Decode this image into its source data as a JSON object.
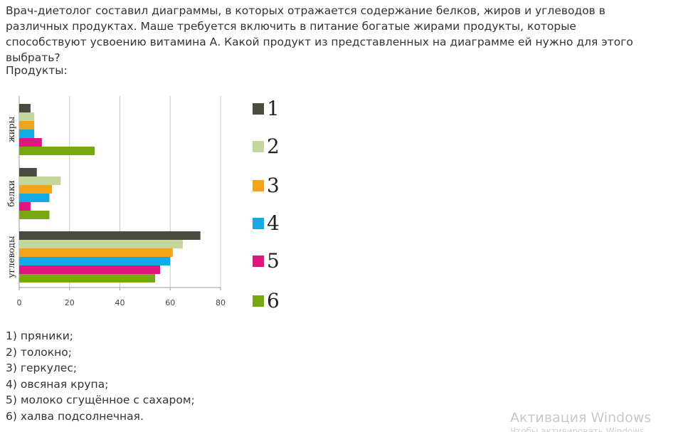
{
  "question": "Врач-диетолог составил диаграммы, в которых отражается содержание белков, жиров и углеводов в различных продуктах. Маше требуется включить в питание богатые жирами продукты, которые способствуют усвоению витамина А. Какой продукт из представленных на диаграмме ей нужно для этого выбрать?",
  "products_label": "Продукты:",
  "options": [
    "1) пряники;",
    "2) толокно;",
    "3) геркулес;",
    "4) овсяная крупа;",
    "5) молоко сгущённое с сахаром;",
    "6) халва подсолнечная."
  ],
  "watermark": {
    "title": "Активация Windows",
    "subtitle": "Чтобы активировать Windows"
  },
  "chart_data": {
    "type": "bar",
    "orientation": "horizontal",
    "categories": [
      "жиры",
      "белки",
      "углеводы"
    ],
    "series": [
      {
        "name": "1",
        "color": "#4a4a40",
        "values": [
          4.5,
          7,
          72
        ]
      },
      {
        "name": "2",
        "color": "#c4d79b",
        "values": [
          6,
          16.5,
          65
        ]
      },
      {
        "name": "3",
        "color": "#f4a316",
        "values": [
          6,
          13,
          61
        ]
      },
      {
        "name": "4",
        "color": "#13a9e3",
        "values": [
          6,
          12,
          60
        ]
      },
      {
        "name": "5",
        "color": "#e0157f",
        "values": [
          9,
          4.5,
          56
        ]
      },
      {
        "name": "6",
        "color": "#77a80f",
        "values": [
          30,
          12,
          54
        ]
      }
    ],
    "xlim": [
      0,
      80
    ],
    "x_ticks": [
      "0",
      "20",
      "40",
      "60",
      "80"
    ],
    "grid": true,
    "legend_position": "right"
  }
}
